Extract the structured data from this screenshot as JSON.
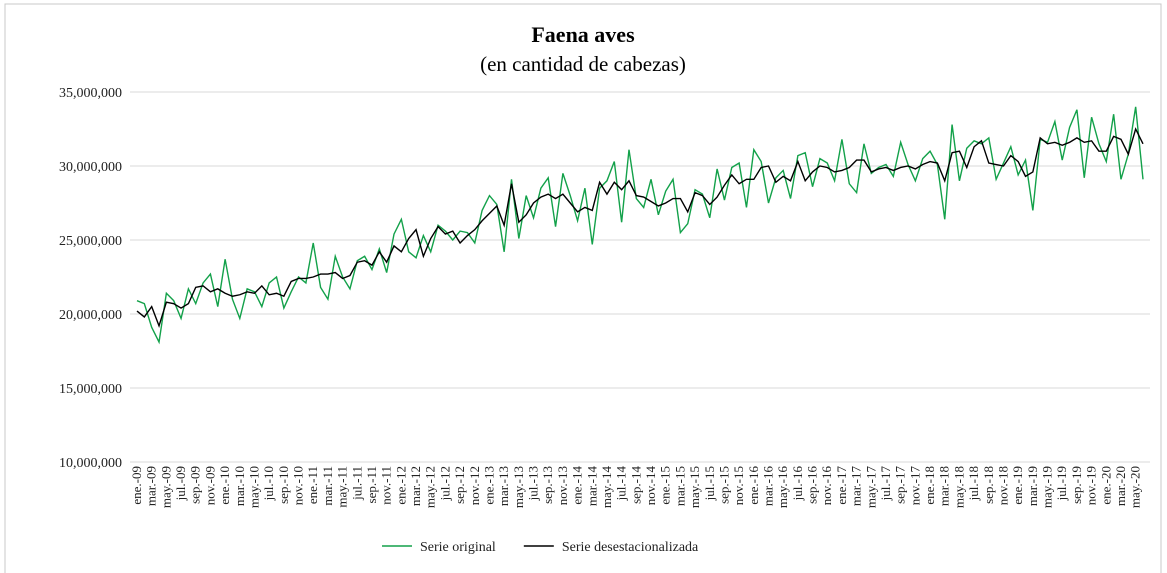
{
  "chart_data": {
    "type": "line",
    "title": "Faena aves",
    "subtitle": "(en cantidad de cabezas)",
    "categories": [
      "ene.-09",
      null,
      "mar.-09",
      null,
      "may.-09",
      null,
      "jul.-09",
      null,
      "sep.-09",
      null,
      "nov.-09",
      null,
      "ene.-10",
      null,
      "mar.-10",
      null,
      "may.-10",
      null,
      "jul.-10",
      null,
      "sep.-10",
      null,
      "nov.-10",
      null,
      "ene.-11",
      null,
      "mar.-11",
      null,
      "may.-11",
      null,
      "jul.-11",
      null,
      "sep.-11",
      null,
      "nov.-11",
      null,
      "ene.-12",
      null,
      "mar.-12",
      null,
      "may.-12",
      null,
      "jul.-12",
      null,
      "sep.-12",
      null,
      "nov.-12",
      null,
      "ene.-13",
      null,
      "mar.-13",
      null,
      "may.-13",
      null,
      "jul.-13",
      null,
      "sep.-13",
      null,
      "nov.-13",
      null,
      "ene.-14",
      null,
      "mar.-14",
      null,
      "may.-14",
      null,
      "jul.-14",
      null,
      "sep.-14",
      null,
      "nov.-14",
      null,
      "ene.-15",
      null,
      "mar.-15",
      null,
      "may.-15",
      null,
      "jul.-15",
      null,
      "sep.-15",
      null,
      "nov.-15",
      null,
      "ene.-16",
      null,
      "mar.-16",
      null,
      "may.-16",
      null,
      "jul.-16",
      null,
      "sep.-16",
      null,
      "nov.-16",
      null,
      "ene.-17",
      null,
      "mar.-17",
      null,
      "may.-17",
      null,
      "jul.-17",
      null,
      "sep.-17",
      null,
      "nov.-17",
      null,
      "ene.-18",
      null,
      "mar.-18",
      null,
      "may.-18",
      null,
      "jul.-18",
      null,
      "sep.-18",
      null,
      "nov.-18",
      null,
      "ene.-19",
      null,
      "mar.-19",
      null,
      "may.-19",
      null,
      "jul.-19",
      null,
      "sep.-19",
      null,
      "nov.-19",
      null,
      "ene.-20",
      null,
      "mar.-20",
      null,
      "may.-20",
      null
    ],
    "series": [
      {
        "name": "Serie original",
        "color": "#13a14a",
        "values": [
          20900000,
          20700000,
          19100000,
          18100000,
          21400000,
          20900000,
          19700000,
          21700000,
          20700000,
          22100000,
          22700000,
          20500000,
          23700000,
          21000000,
          19700000,
          21700000,
          21500000,
          20500000,
          22100000,
          22500000,
          20400000,
          21500000,
          22500000,
          22100000,
          24800000,
          21800000,
          21000000,
          23900000,
          22500000,
          21700000,
          23600000,
          23900000,
          23000000,
          24400000,
          22800000,
          25400000,
          26400000,
          24200000,
          23800000,
          25300000,
          24200000,
          26000000,
          25600000,
          25000000,
          25600000,
          25500000,
          24800000,
          27000000,
          28000000,
          27400000,
          24200000,
          29100000,
          25100000,
          28000000,
          26500000,
          28500000,
          29200000,
          25900000,
          29500000,
          28000000,
          26300000,
          28500000,
          24700000,
          28500000,
          29000000,
          30300000,
          26200000,
          31100000,
          27800000,
          27200000,
          29100000,
          26700000,
          28300000,
          29100000,
          25500000,
          26100000,
          28400000,
          28100000,
          26500000,
          29800000,
          27700000,
          29900000,
          30200000,
          27200000,
          31100000,
          30300000,
          27500000,
          29200000,
          29700000,
          27800000,
          30700000,
          30900000,
          28600000,
          30500000,
          30200000,
          29000000,
          31800000,
          28800000,
          28200000,
          31500000,
          29500000,
          29900000,
          30100000,
          29300000,
          31600000,
          30100000,
          29000000,
          30500000,
          31000000,
          30100000,
          26400000,
          32800000,
          29000000,
          31200000,
          31700000,
          31500000,
          31900000,
          29100000,
          30200000,
          31300000,
          29400000,
          30400000,
          27000000,
          31800000,
          31600000,
          33000000,
          30400000,
          32600000,
          33800000,
          29200000,
          33300000,
          31500000,
          30300000,
          33500000,
          29100000,
          30800000,
          34000000,
          29100000
        ]
      },
      {
        "name": "Serie desestacionalizada",
        "color": "#000000",
        "values": [
          20200000,
          19800000,
          20500000,
          19200000,
          20800000,
          20700000,
          20400000,
          20700000,
          21800000,
          21900000,
          21500000,
          21700000,
          21400000,
          21200000,
          21300000,
          21500000,
          21400000,
          21900000,
          21300000,
          21400000,
          21200000,
          22200000,
          22400000,
          22400000,
          22500000,
          22700000,
          22700000,
          22800000,
          22400000,
          22600000,
          23500000,
          23600000,
          23300000,
          24200000,
          23500000,
          24600000,
          24200000,
          25100000,
          25700000,
          23900000,
          25100000,
          25900000,
          25400000,
          25600000,
          24800000,
          25300000,
          25700000,
          26300000,
          26800000,
          27300000,
          26000000,
          28800000,
          26200000,
          26700000,
          27500000,
          27900000,
          28100000,
          27800000,
          28100000,
          27500000,
          26900000,
          27200000,
          27000000,
          28900000,
          28100000,
          28900000,
          28400000,
          29000000,
          28000000,
          27900000,
          27600000,
          27300000,
          27500000,
          27800000,
          27800000,
          26900000,
          28200000,
          28000000,
          27400000,
          27900000,
          28700000,
          29400000,
          28800000,
          29100000,
          29100000,
          29900000,
          30000000,
          28900000,
          29300000,
          29000000,
          30300000,
          29000000,
          29600000,
          30000000,
          29900000,
          29600000,
          29700000,
          29900000,
          30400000,
          30400000,
          29600000,
          29800000,
          29900000,
          29700000,
          29900000,
          30000000,
          29800000,
          30100000,
          30300000,
          30200000,
          29000000,
          30900000,
          31000000,
          29900000,
          31300000,
          31700000,
          30200000,
          30100000,
          30000000,
          30700000,
          30300000,
          29300000,
          29600000,
          31900000,
          31500000,
          31600000,
          31400000,
          31600000,
          31900000,
          31600000,
          31700000,
          31000000,
          31000000,
          32000000,
          31800000,
          30800000,
          32500000,
          31500000
        ]
      }
    ],
    "ylim": [
      10000000,
      35000000
    ],
    "yticks": [
      {
        "value": 10000000,
        "label": "10,000,000"
      },
      {
        "value": 15000000,
        "label": "15,000,000"
      },
      {
        "value": 20000000,
        "label": "20,000,000"
      },
      {
        "value": 25000000,
        "label": "25,000,000"
      },
      {
        "value": 30000000,
        "label": "30,000,000"
      },
      {
        "value": 35000000,
        "label": "35,000,000"
      }
    ],
    "grid": true
  }
}
